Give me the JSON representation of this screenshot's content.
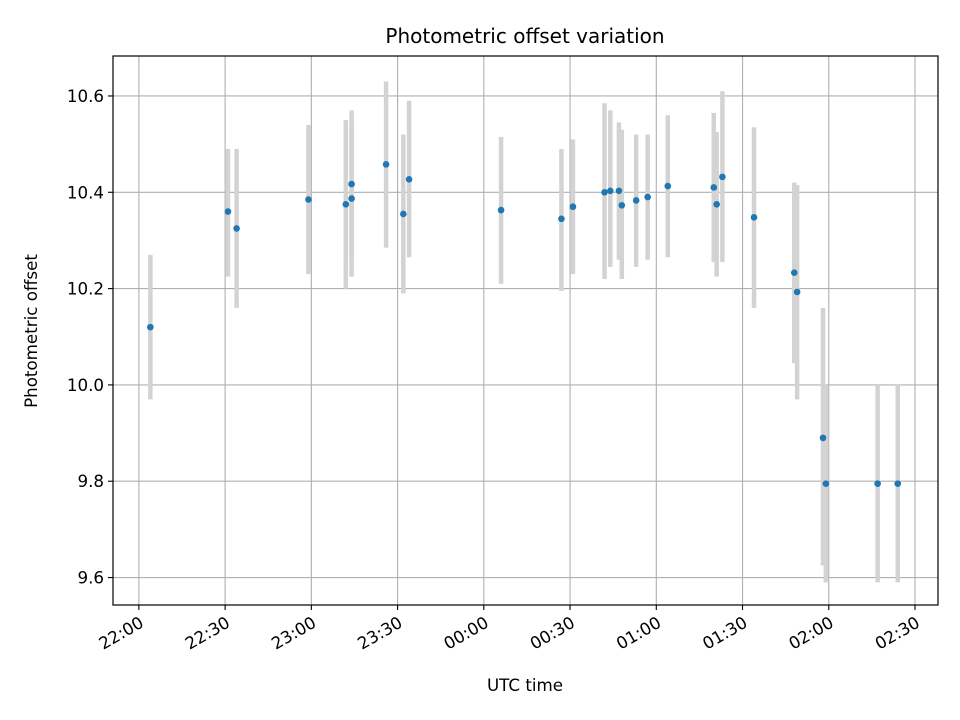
{
  "chart_data": {
    "type": "scatter",
    "title": "Photometric offset variation",
    "xlabel": "UTC time",
    "ylabel": "Photometric offset",
    "grid": true,
    "x_range_minutes": [
      -9,
      278
    ],
    "ylim": [
      9.543,
      10.683
    ],
    "x_ticks": [
      {
        "label": "22:00",
        "minutes": 0
      },
      {
        "label": "22:30",
        "minutes": 30
      },
      {
        "label": "23:00",
        "minutes": 60
      },
      {
        "label": "23:30",
        "minutes": 90
      },
      {
        "label": "00:00",
        "minutes": 120
      },
      {
        "label": "00:30",
        "minutes": 150
      },
      {
        "label": "01:00",
        "minutes": 180
      },
      {
        "label": "01:30",
        "minutes": 210
      },
      {
        "label": "02:00",
        "minutes": 240
      },
      {
        "label": "02:30",
        "minutes": 270
      }
    ],
    "y_ticks": [
      9.6,
      9.8,
      10.0,
      10.2,
      10.4,
      10.6
    ],
    "y_tick_labels": [
      "9.6",
      "9.8",
      "10.0",
      "10.2",
      "10.4",
      "10.6"
    ],
    "colors": {
      "point": "#1f77b4",
      "errorbar": "#d3d3d3",
      "grid": "#b0b0b0"
    },
    "points": [
      {
        "time": "22:04",
        "y": 10.12,
        "ylow": 9.97,
        "yhigh": 10.27
      },
      {
        "time": "22:31",
        "y": 10.36,
        "ylow": 10.225,
        "yhigh": 10.49
      },
      {
        "time": "22:34",
        "y": 10.325,
        "ylow": 10.16,
        "yhigh": 10.49
      },
      {
        "time": "22:59",
        "y": 10.385,
        "ylow": 10.23,
        "yhigh": 10.54
      },
      {
        "time": "23:12",
        "y": 10.375,
        "ylow": 10.2,
        "yhigh": 10.55
      },
      {
        "time": "23:14",
        "y": 10.387,
        "ylow": 10.225,
        "yhigh": 10.545
      },
      {
        "time": "23:14",
        "y": 10.417,
        "ylow": 10.26,
        "yhigh": 10.57
      },
      {
        "time": "23:26",
        "y": 10.458,
        "ylow": 10.285,
        "yhigh": 10.63
      },
      {
        "time": "23:32",
        "y": 10.355,
        "ylow": 10.19,
        "yhigh": 10.52
      },
      {
        "time": "23:34",
        "y": 10.427,
        "ylow": 10.265,
        "yhigh": 10.59
      },
      {
        "time": "00:06",
        "y": 10.363,
        "ylow": 10.21,
        "yhigh": 10.515
      },
      {
        "time": "00:27",
        "y": 10.345,
        "ylow": 10.195,
        "yhigh": 10.49
      },
      {
        "time": "00:31",
        "y": 10.37,
        "ylow": 10.23,
        "yhigh": 10.51
      },
      {
        "time": "00:42",
        "y": 10.4,
        "ylow": 10.22,
        "yhigh": 10.585
      },
      {
        "time": "00:44",
        "y": 10.403,
        "ylow": 10.245,
        "yhigh": 10.57
      },
      {
        "time": "00:47",
        "y": 10.403,
        "ylow": 10.26,
        "yhigh": 10.545
      },
      {
        "time": "00:48",
        "y": 10.373,
        "ylow": 10.22,
        "yhigh": 10.53
      },
      {
        "time": "00:53",
        "y": 10.383,
        "ylow": 10.245,
        "yhigh": 10.52
      },
      {
        "time": "00:57",
        "y": 10.39,
        "ylow": 10.26,
        "yhigh": 10.52
      },
      {
        "time": "01:04",
        "y": 10.413,
        "ylow": 10.265,
        "yhigh": 10.56
      },
      {
        "time": "01:20",
        "y": 10.41,
        "ylow": 10.255,
        "yhigh": 10.565
      },
      {
        "time": "01:21",
        "y": 10.375,
        "ylow": 10.225,
        "yhigh": 10.525
      },
      {
        "time": "01:23",
        "y": 10.432,
        "ylow": 10.255,
        "yhigh": 10.61
      },
      {
        "time": "01:34",
        "y": 10.348,
        "ylow": 10.16,
        "yhigh": 10.535
      },
      {
        "time": "01:48",
        "y": 10.233,
        "ylow": 10.045,
        "yhigh": 10.42
      },
      {
        "time": "01:49",
        "y": 10.193,
        "ylow": 9.97,
        "yhigh": 10.415
      },
      {
        "time": "01:58",
        "y": 9.89,
        "ylow": 9.625,
        "yhigh": 10.16
      },
      {
        "time": "01:59",
        "y": 9.795,
        "ylow": 9.59,
        "yhigh": 10.0
      },
      {
        "time": "02:17",
        "y": 9.795,
        "ylow": 9.59,
        "yhigh": 10.0
      },
      {
        "time": "02:24",
        "y": 9.795,
        "ylow": 9.59,
        "yhigh": 10.0
      }
    ]
  }
}
